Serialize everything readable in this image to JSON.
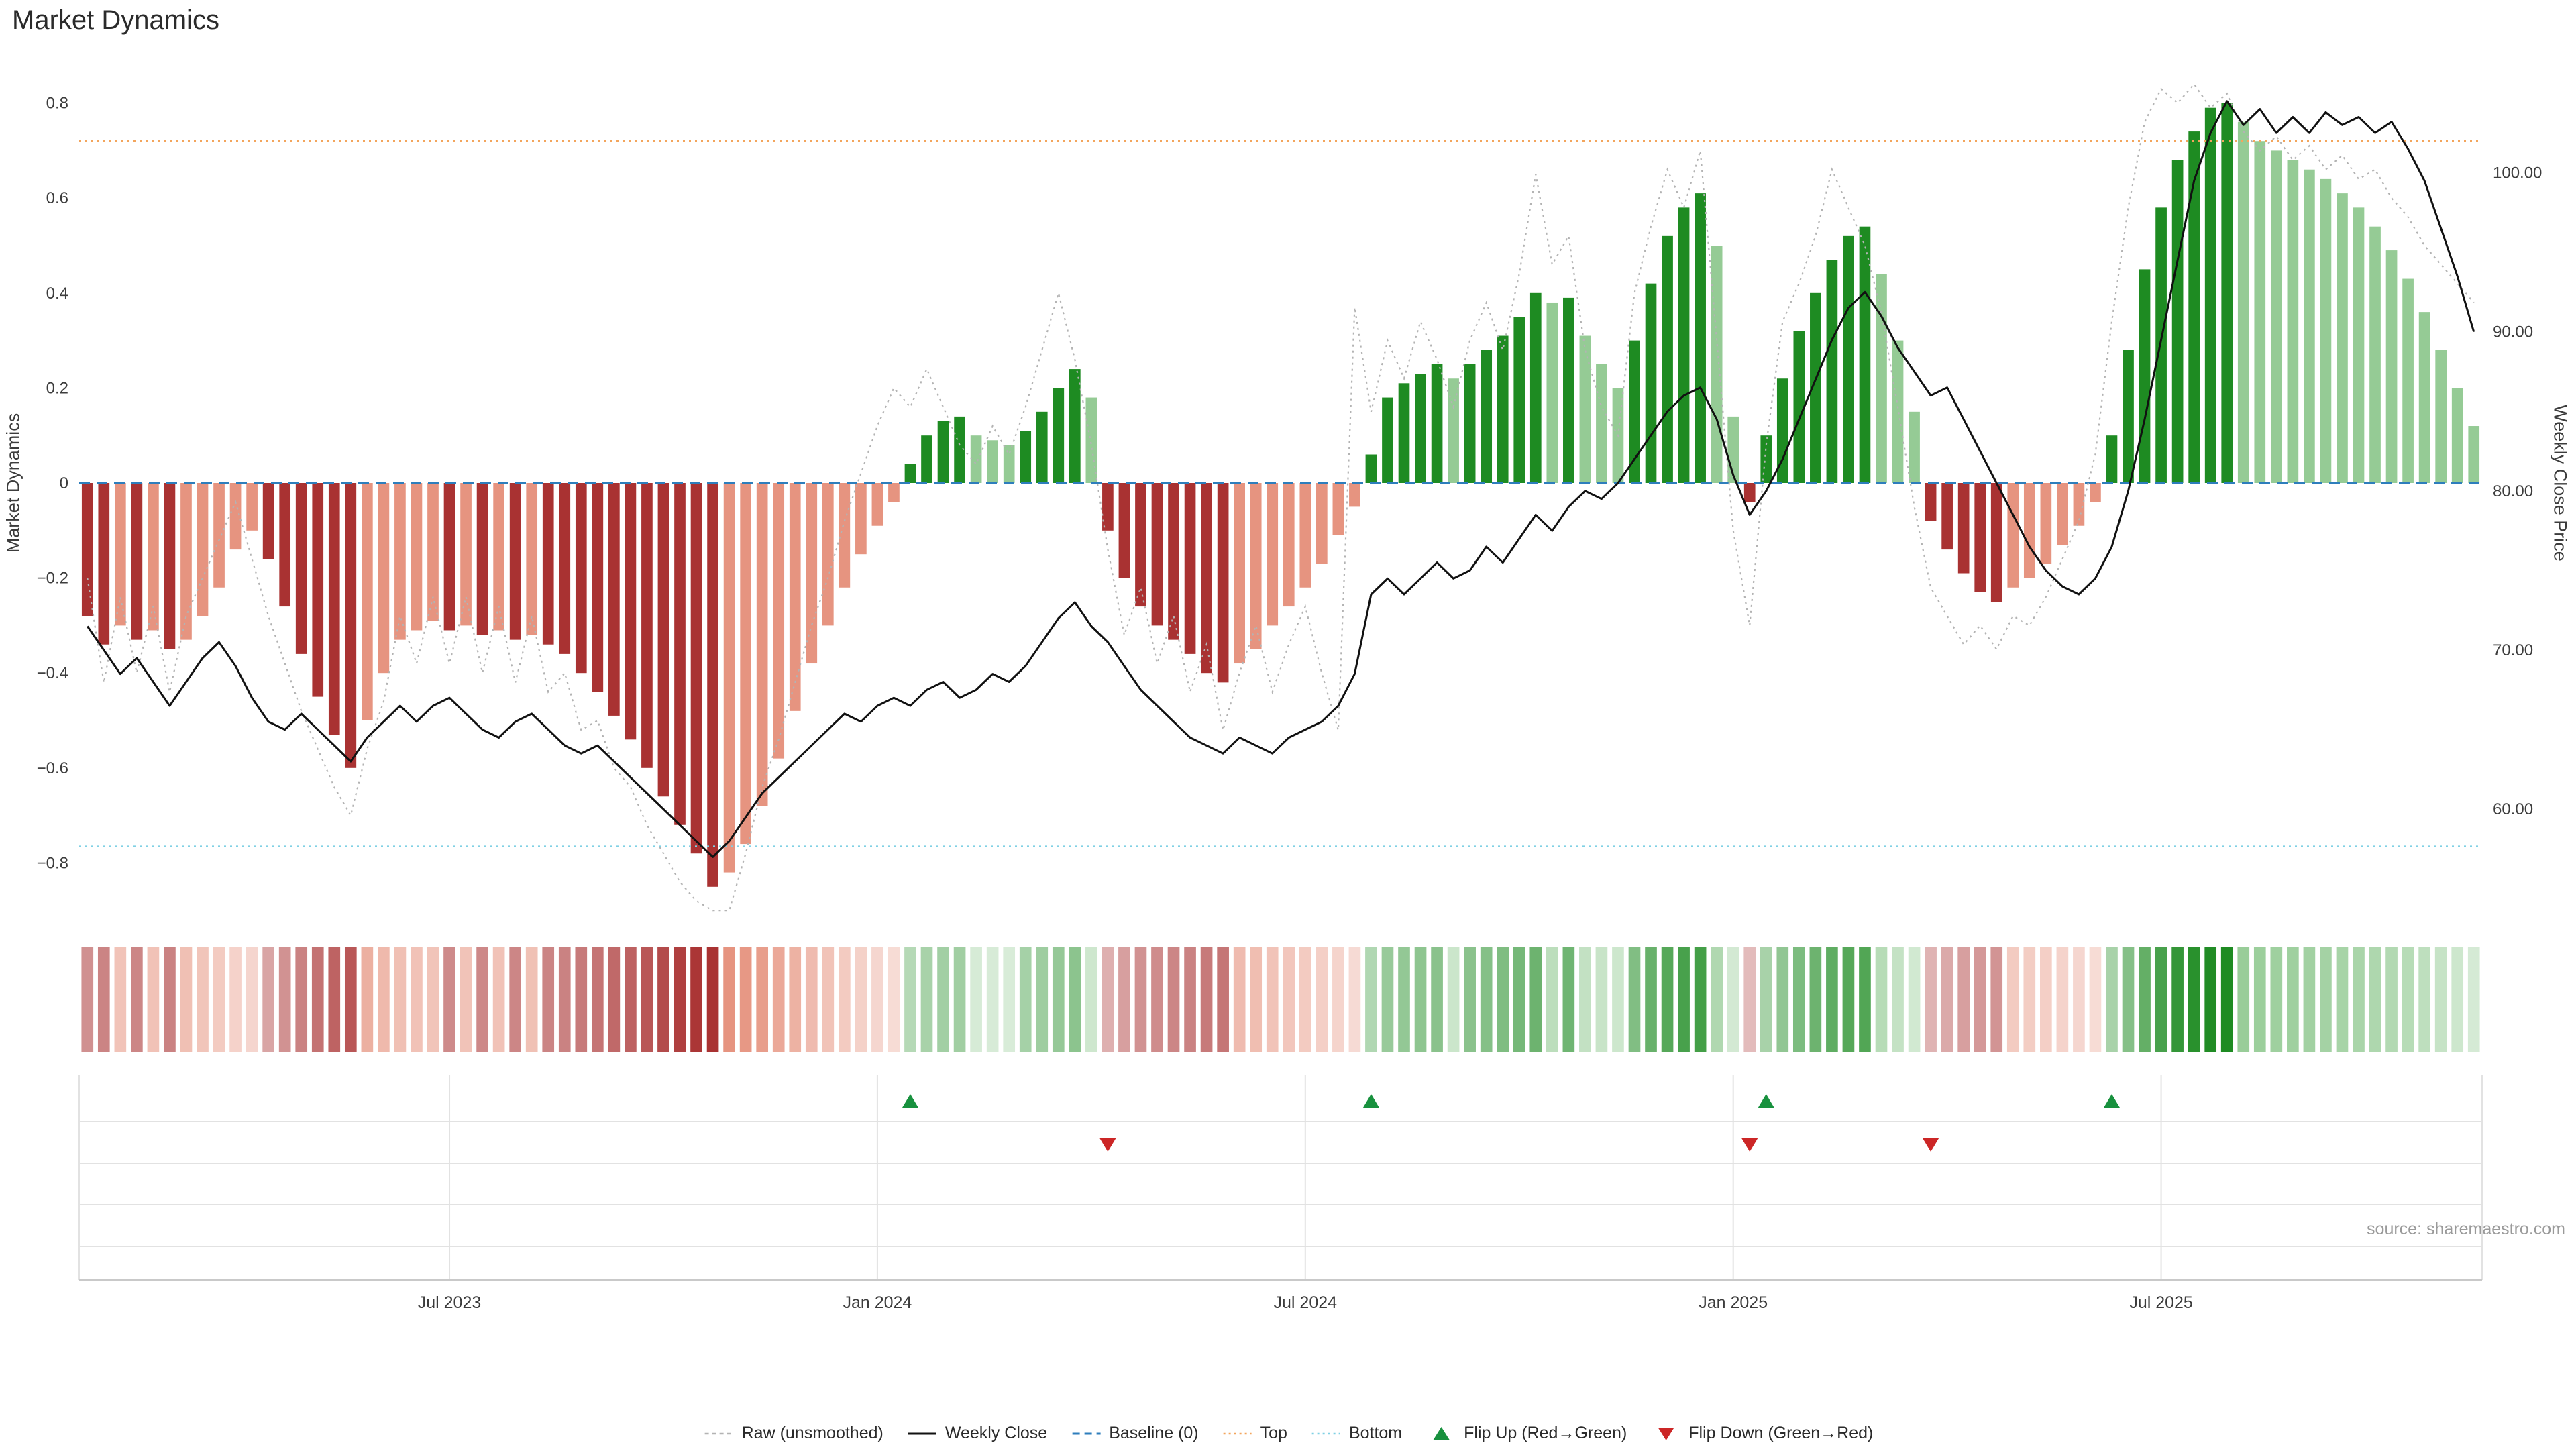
{
  "title": "Market Dynamics",
  "source": "source: sharemaestro.com",
  "colors": {
    "bar_dark_red": "#a93232",
    "bar_light_red": "#e69480",
    "bar_dark_green": "#1e8b22",
    "bar_light_green": "#95cb95",
    "price": "#111111",
    "raw": "#b3b3b3",
    "baseline": "#2e7ebc",
    "top": "#f3a55c",
    "bottom": "#7fd0e4",
    "flip_up": "#18913e",
    "flip_down": "#cc2626",
    "grid": "#e2e2e2",
    "axis_line": "#c9c9c9",
    "axis_text": "#3c3c3c"
  },
  "legend": {
    "items": [
      {
        "label": "Raw (unsmoothed)",
        "sample": "dashed-gray"
      },
      {
        "label": "Weekly Close",
        "sample": "solid-black"
      },
      {
        "label": "Baseline (0)",
        "sample": "dashed-blue"
      },
      {
        "label": "Top",
        "sample": "dotted-orange"
      },
      {
        "label": "Bottom",
        "sample": "dotted-cyan"
      },
      {
        "label": "Flip Up (Red→Green)",
        "sample": "triangle-up-green"
      },
      {
        "label": "Flip Down (Green→Red)",
        "sample": "triangle-down-red"
      }
    ]
  },
  "chart_data": {
    "type": "bar",
    "title": "Market Dynamics",
    "n_weeks": 146,
    "start_date": "2023-02-03",
    "frequency": "weekly",
    "x_ticks": [
      {
        "week": 22,
        "label": "Jul 2023"
      },
      {
        "week": 48,
        "label": "Jan 2024"
      },
      {
        "week": 74,
        "label": "Jul 2024"
      },
      {
        "week": 100,
        "label": "Jan 2025"
      },
      {
        "week": 126,
        "label": "Jul 2025"
      }
    ],
    "left_axis": {
      "label": "Market Dynamics",
      "tick_values": [
        0.8,
        0.6,
        0.4,
        0.2,
        0,
        -0.2,
        -0.4,
        -0.6,
        -0.8
      ],
      "tick_labels": [
        "0.8",
        "0.6",
        "0.4",
        "0.2",
        "0",
        "−0.2",
        "−0.4",
        "−0.6",
        "−0.8"
      ],
      "range": [
        -0.91,
        0.9
      ]
    },
    "right_axis": {
      "label": "Weekly Close Price",
      "tick_values": [
        100,
        90,
        80,
        70,
        60
      ],
      "tick_labels": [
        "100.00",
        "90.00",
        "80.00",
        "70.00",
        "60.00"
      ]
    },
    "reference_lines": {
      "baseline": 0,
      "top": 0.72,
      "bottom": -0.765
    },
    "flip_up_weeks": [
      50,
      78,
      102,
      123
    ],
    "flip_down_weeks": [
      62,
      101,
      112
    ],
    "series": [
      {
        "name": "Market Dynamics (smoothed bars + heatmap)",
        "type": "bar",
        "values": [
          -0.28,
          -0.34,
          -0.3,
          -0.33,
          -0.31,
          -0.35,
          -0.33,
          -0.28,
          -0.22,
          -0.14,
          -0.1,
          -0.16,
          -0.26,
          -0.36,
          -0.45,
          -0.53,
          -0.6,
          -0.5,
          -0.4,
          -0.33,
          -0.31,
          -0.29,
          -0.31,
          -0.3,
          -0.32,
          -0.31,
          -0.33,
          -0.32,
          -0.34,
          -0.36,
          -0.4,
          -0.44,
          -0.49,
          -0.54,
          -0.6,
          -0.66,
          -0.72,
          -0.78,
          -0.85,
          -0.82,
          -0.76,
          -0.68,
          -0.58,
          -0.48,
          -0.38,
          -0.3,
          -0.22,
          -0.15,
          -0.09,
          -0.04,
          0.04,
          0.1,
          0.13,
          0.14,
          0.1,
          0.09,
          0.08,
          0.11,
          0.15,
          0.2,
          0.24,
          0.18,
          -0.1,
          -0.2,
          -0.26,
          -0.3,
          -0.33,
          -0.36,
          -0.4,
          -0.42,
          -0.38,
          -0.35,
          -0.3,
          -0.26,
          -0.22,
          -0.17,
          -0.11,
          -0.05,
          0.06,
          0.18,
          0.21,
          0.23,
          0.25,
          0.22,
          0.25,
          0.28,
          0.31,
          0.35,
          0.4,
          0.38,
          0.39,
          0.31,
          0.25,
          0.2,
          0.3,
          0.42,
          0.52,
          0.58,
          0.61,
          0.5,
          0.14,
          -0.04,
          0.1,
          0.22,
          0.32,
          0.4,
          0.47,
          0.52,
          0.54,
          0.44,
          0.3,
          0.15,
          -0.08,
          -0.14,
          -0.19,
          -0.23,
          -0.25,
          -0.22,
          -0.2,
          -0.17,
          -0.13,
          -0.09,
          -0.04,
          0.1,
          0.28,
          0.45,
          0.58,
          0.68,
          0.74,
          0.79,
          0.8,
          0.76,
          0.72,
          0.7,
          0.68,
          0.66,
          0.64,
          0.61,
          0.58,
          0.54,
          0.49,
          0.43,
          0.36,
          0.28,
          0.2,
          0.12
        ]
      },
      {
        "name": "Raw (unsmoothed)",
        "type": "line",
        "values": [
          -0.2,
          -0.42,
          -0.24,
          -0.4,
          -0.26,
          -0.44,
          -0.28,
          -0.2,
          -0.12,
          -0.04,
          -0.16,
          -0.28,
          -0.38,
          -0.48,
          -0.56,
          -0.64,
          -0.7,
          -0.56,
          -0.46,
          -0.28,
          -0.38,
          -0.24,
          -0.38,
          -0.24,
          -0.4,
          -0.26,
          -0.42,
          -0.28,
          -0.44,
          -0.4,
          -0.52,
          -0.5,
          -0.6,
          -0.64,
          -0.72,
          -0.78,
          -0.84,
          -0.88,
          -0.95,
          -0.9,
          -0.78,
          -0.64,
          -0.54,
          -0.42,
          -0.3,
          -0.2,
          -0.08,
          0.02,
          0.12,
          0.2,
          0.16,
          0.24,
          0.16,
          0.08,
          0.04,
          0.12,
          0.06,
          0.16,
          0.28,
          0.4,
          0.26,
          0.08,
          -0.14,
          -0.32,
          -0.22,
          -0.38,
          -0.28,
          -0.44,
          -0.34,
          -0.52,
          -0.4,
          -0.3,
          -0.44,
          -0.34,
          -0.26,
          -0.4,
          -0.52,
          0.37,
          0.15,
          0.3,
          0.22,
          0.34,
          0.26,
          0.16,
          0.3,
          0.38,
          0.28,
          0.44,
          0.65,
          0.46,
          0.52,
          0.28,
          0.16,
          0.1,
          0.4,
          0.54,
          0.66,
          0.58,
          0.7,
          0.3,
          -0.1,
          -0.3,
          0.08,
          0.34,
          0.42,
          0.52,
          0.66,
          0.58,
          0.5,
          0.36,
          0.16,
          -0.05,
          -0.22,
          -0.28,
          -0.34,
          -0.3,
          -0.35,
          -0.28,
          -0.3,
          -0.24,
          -0.16,
          -0.08,
          0.06,
          0.34,
          0.58,
          0.76,
          0.83,
          0.8,
          0.84,
          0.79,
          0.82,
          0.74,
          0.7,
          0.73,
          0.68,
          0.71,
          0.66,
          0.69,
          0.64,
          0.66,
          0.6,
          0.56,
          0.5,
          0.46,
          0.42,
          0.38
        ]
      },
      {
        "name": "Weekly Close",
        "type": "line",
        "axis": "right",
        "values": [
          71.5,
          70.0,
          68.5,
          69.5,
          68.0,
          66.5,
          68.0,
          69.5,
          70.5,
          69.0,
          67.0,
          65.5,
          65.0,
          66.0,
          65.0,
          64.0,
          63.0,
          64.5,
          65.5,
          66.5,
          65.5,
          66.5,
          67.0,
          66.0,
          65.0,
          64.5,
          65.5,
          66.0,
          65.0,
          64.0,
          63.5,
          64.0,
          63.0,
          62.0,
          61.0,
          60.0,
          59.0,
          58.0,
          57.0,
          58.0,
          59.5,
          61.0,
          62.0,
          63.0,
          64.0,
          65.0,
          66.0,
          65.5,
          66.5,
          67.0,
          66.5,
          67.5,
          68.0,
          67.0,
          67.5,
          68.5,
          68.0,
          69.0,
          70.5,
          72.0,
          73.0,
          71.5,
          70.5,
          69.0,
          67.5,
          66.5,
          65.5,
          64.5,
          64.0,
          63.5,
          64.5,
          64.0,
          63.5,
          64.5,
          65.0,
          65.5,
          66.5,
          68.5,
          73.5,
          74.5,
          73.5,
          74.5,
          75.5,
          74.5,
          75.0,
          76.5,
          75.5,
          77.0,
          78.5,
          77.5,
          79.0,
          80.0,
          79.5,
          80.5,
          82.0,
          83.5,
          85.0,
          86.0,
          86.5,
          84.5,
          81.0,
          78.5,
          80.0,
          82.0,
          84.5,
          87.0,
          89.5,
          91.5,
          92.5,
          91.0,
          89.0,
          87.5,
          86.0,
          86.5,
          84.5,
          82.5,
          80.5,
          78.5,
          76.5,
          75.0,
          74.0,
          73.5,
          74.5,
          76.5,
          80.0,
          84.5,
          89.5,
          94.5,
          99.5,
          102.5,
          104.5,
          103.0,
          104.0,
          102.5,
          103.5,
          102.5,
          103.8,
          103.0,
          103.5,
          102.5,
          103.2,
          101.5,
          99.5,
          96.5,
          93.5,
          90.0
        ]
      }
    ]
  }
}
